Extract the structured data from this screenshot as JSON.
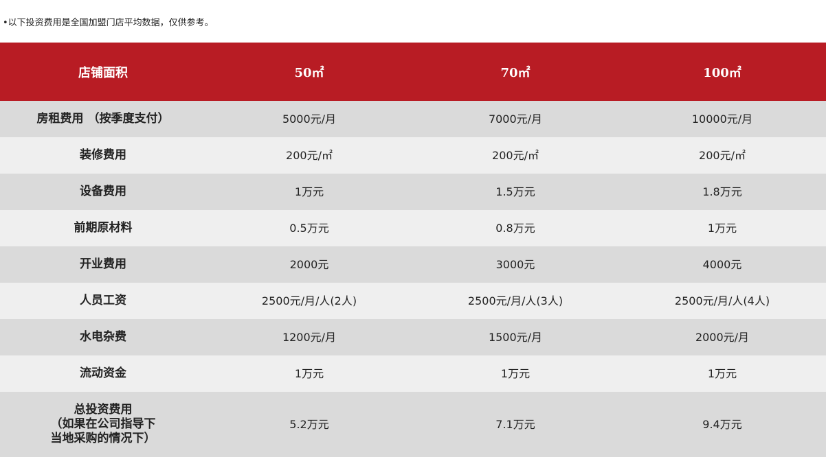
{
  "note": "•以下投资费用是全国加盟门店平均数据，仅供参考。",
  "table": {
    "header": [
      "店铺面积",
      "50㎡",
      "70㎡",
      "100㎡"
    ],
    "rows": [
      [
        "房租费用 （按季度支付）",
        "5000元/月",
        "7000元/月",
        "10000元/月"
      ],
      [
        "装修费用",
        "200元/㎡",
        "200元/㎡",
        "200元/㎡"
      ],
      [
        "设备费用",
        "1万元",
        "1.5万元",
        "1.8万元"
      ],
      [
        "前期原材料",
        "0.5万元",
        "0.8万元",
        "1万元"
      ],
      [
        "开业费用",
        "2000元",
        "3000元",
        "4000元"
      ],
      [
        "人员工资",
        "2500元/月/人(2人)",
        "2500元/月/人(3人)",
        "2500元/月/人(4人)"
      ],
      [
        "水电杂费",
        "1200元/月",
        "1500元/月",
        "2000元/月"
      ],
      [
        "流动资金",
        "1万元",
        "1万元",
        "1万元"
      ],
      [
        "总投资费用\n（如果在公司指导下\n当地采购的情况下）",
        "5.2万元",
        "7.1万元",
        "9.4万元"
      ]
    ]
  }
}
